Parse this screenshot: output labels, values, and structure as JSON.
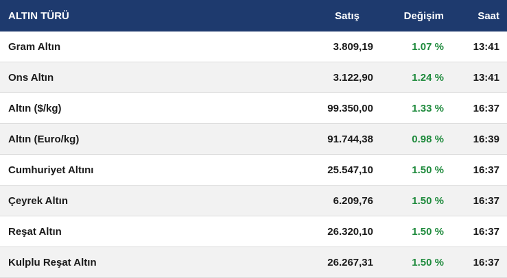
{
  "header": {
    "name": "ALTIN TÜRÜ",
    "sale": "Satış",
    "change": "Değişim",
    "time": "Saat"
  },
  "colors": {
    "header_bg": "#1e3a6e",
    "positive": "#1e8a3c"
  },
  "rows": [
    {
      "name": "Gram Altın",
      "sale": "3.809,19",
      "change": "1.07 %",
      "time": "13:41"
    },
    {
      "name": "Ons Altın",
      "sale": "3.122,90",
      "change": "1.24 %",
      "time": "13:41"
    },
    {
      "name": "Altın ($/kg)",
      "sale": "99.350,00",
      "change": "1.33 %",
      "time": "16:37"
    },
    {
      "name": "Altın (Euro/kg)",
      "sale": "91.744,38",
      "change": "0.98 %",
      "time": "16:39"
    },
    {
      "name": "Cumhuriyet Altını",
      "sale": "25.547,10",
      "change": "1.50 %",
      "time": "16:37"
    },
    {
      "name": "Çeyrek Altın",
      "sale": "6.209,76",
      "change": "1.50 %",
      "time": "16:37"
    },
    {
      "name": "Reşat Altın",
      "sale": "26.320,10",
      "change": "1.50 %",
      "time": "16:37"
    },
    {
      "name": "Kulplu Reşat Altın",
      "sale": "26.267,31",
      "change": "1.50 %",
      "time": "16:37"
    }
  ]
}
